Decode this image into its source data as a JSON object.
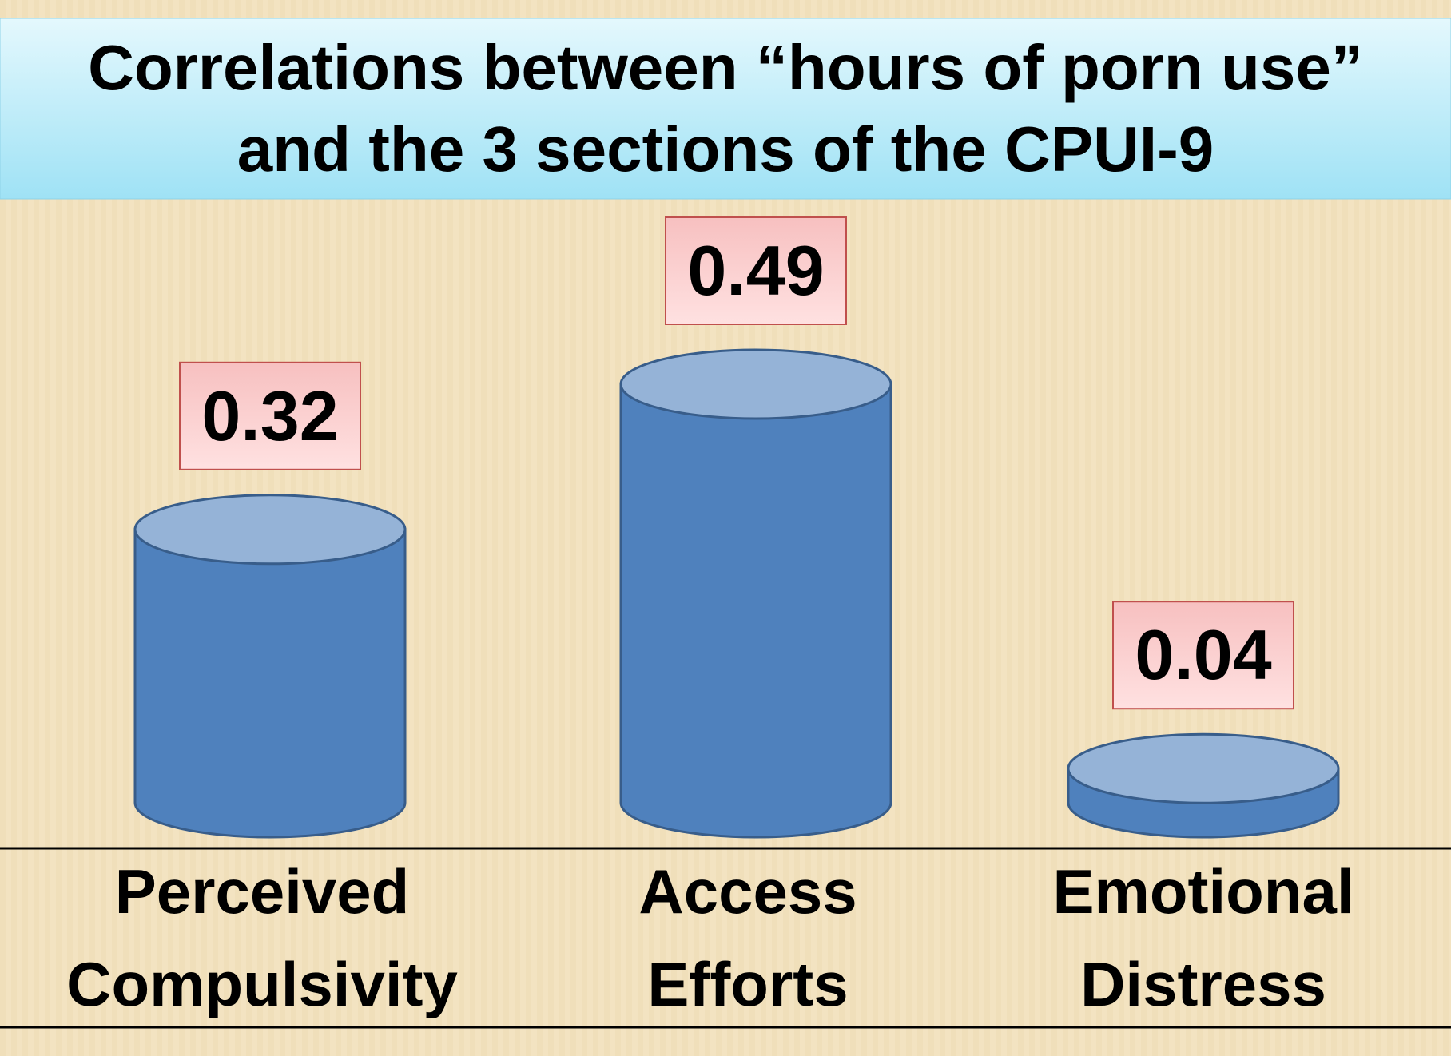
{
  "chart_data": {
    "type": "cylinder",
    "title": [
      "Correlations between “hours of porn use”",
      "and the 3 sections of the CPUI-9"
    ],
    "categories": [
      "Perceived Compulsivity",
      "Access Efforts",
      "Emotional Distress"
    ],
    "values": [
      0.32,
      0.49,
      0.04
    ],
    "color": "#4f81bd"
  }
}
